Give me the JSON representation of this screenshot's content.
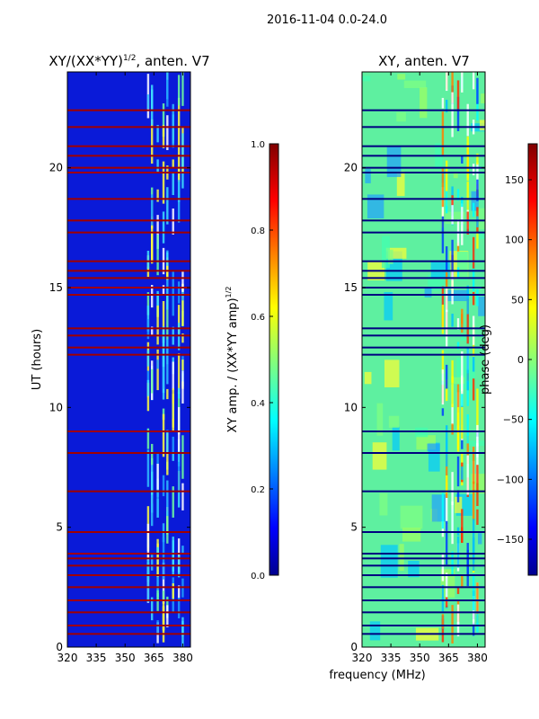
{
  "suptitle": "2016-11-04 0.0-24.0",
  "colors": {
    "jet": [
      "#00008f",
      "#0000ff",
      "#00ffff",
      "#ffff00",
      "#ff0000",
      "#800000"
    ]
  },
  "chart_data": [
    {
      "type": "heatmap",
      "title": "XY/(XX*YY)",
      "title_superscript": "1/2",
      "title_suffix": ", anten. V7",
      "xlabel": "",
      "ylabel": "UT (hours)",
      "xlim": [
        320,
        384
      ],
      "ylim": [
        0,
        24
      ],
      "xticks": [
        320,
        335,
        350,
        365,
        380
      ],
      "yticks": [
        0,
        5,
        10,
        15,
        20
      ],
      "bad_rows_hours": [
        0.55,
        0.9,
        1.45,
        1.95,
        2.5,
        3.0,
        3.4,
        3.7,
        3.9,
        4.8,
        6.5,
        8.1,
        9.0,
        12.2,
        12.5,
        13.0,
        13.3,
        14.7,
        15.0,
        15.4,
        15.7,
        16.1,
        17.3,
        17.8,
        18.7,
        19.8,
        20.0,
        20.5,
        20.9,
        21.7,
        22.4
      ],
      "colorbar": {
        "label": "XY amp. / (XX*YY amp)",
        "label_superscript": "1/2",
        "range": [
          0.0,
          1.0
        ],
        "ticks": [
          "0.0",
          "0.2",
          "0.4",
          "0.6",
          "0.8",
          "1.0"
        ]
      }
    },
    {
      "type": "heatmap",
      "title": "XY, anten. V7",
      "xlabel": "frequency (MHz)",
      "ylabel": "",
      "xlim": [
        320,
        384
      ],
      "ylim": [
        0,
        24
      ],
      "xticks": [
        320,
        335,
        350,
        365,
        380
      ],
      "yticks": [
        0,
        5,
        10,
        15,
        20
      ],
      "bad_rows_hours": [
        0.55,
        0.9,
        1.45,
        1.95,
        2.5,
        3.0,
        3.4,
        3.7,
        3.9,
        4.8,
        6.5,
        8.1,
        9.0,
        12.2,
        12.5,
        13.0,
        13.3,
        14.7,
        15.0,
        15.4,
        15.7,
        16.1,
        17.3,
        17.8,
        18.7,
        19.8,
        20.0,
        20.5,
        20.9,
        21.7,
        22.4
      ],
      "colorbar": {
        "label": "phase (deg)",
        "range": [
          -180,
          180
        ],
        "ticks": [
          "150",
          "100",
          "50",
          "0",
          "−50",
          "−100",
          "−150"
        ],
        "tick_values": [
          150,
          100,
          50,
          0,
          -50,
          -100,
          -150
        ]
      }
    }
  ]
}
